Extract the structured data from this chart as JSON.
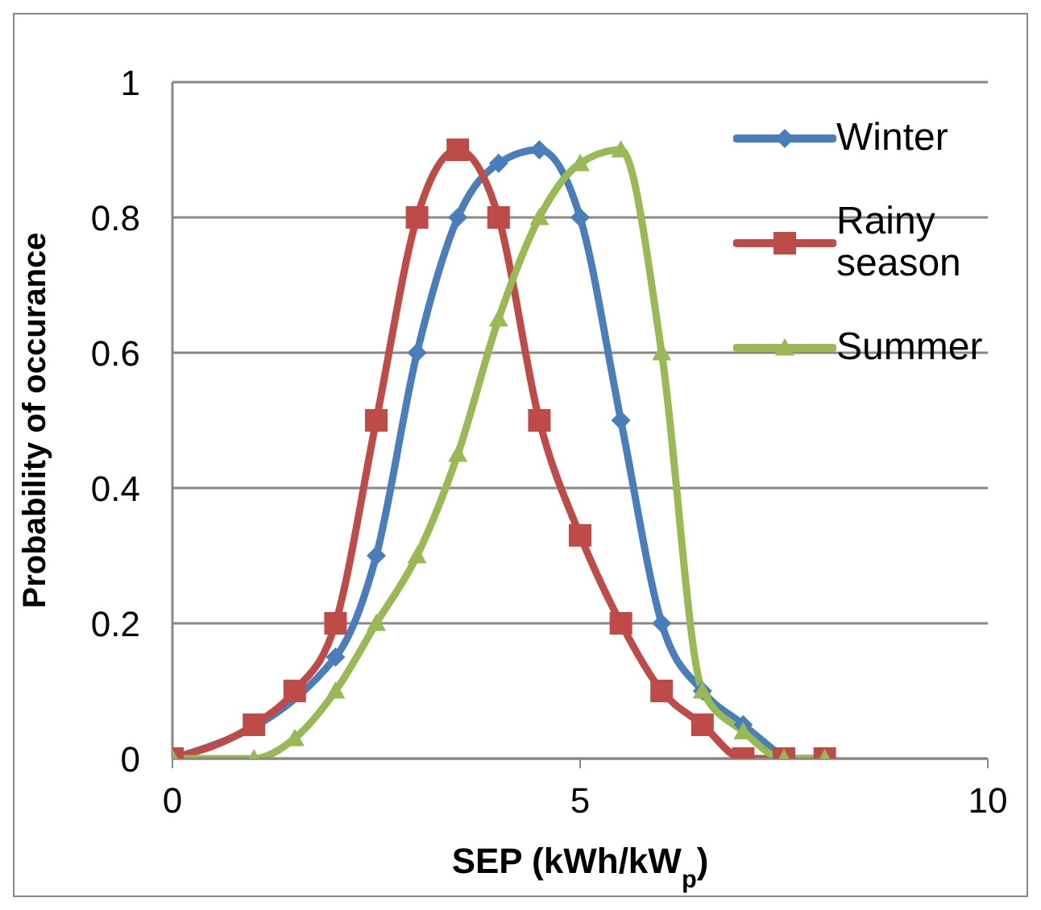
{
  "chart_data": {
    "type": "line",
    "xlabel": "SEP (kWh/kW$_{p}$)",
    "ylabel": "Probability  of  occurance",
    "xlim": [
      0,
      10
    ],
    "xticks": [
      0,
      5,
      10
    ],
    "ylim": [
      0,
      1
    ],
    "yticks": [
      0,
      0.2,
      0.4,
      0.6,
      0.8,
      1
    ],
    "grid": "y",
    "legend": "top right",
    "line_style": "solid",
    "series": [
      {
        "name": "Winter",
        "color": "#4a7ebb",
        "marker": "diamond",
        "x": [
          0,
          1,
          1.5,
          2,
          2.5,
          3,
          3.5,
          4,
          4.5,
          5,
          5.5,
          6,
          6.5,
          7,
          7.5
        ],
        "values": [
          0,
          null,
          null,
          0.15,
          0.3,
          0.6,
          0.8,
          0.88,
          0.9,
          0.8,
          0.5,
          0.2,
          0.1,
          0.05,
          0
        ]
      },
      {
        "name": "Rainy season",
        "color": "#be4b48",
        "marker": "square",
        "x": [
          0,
          1,
          1.5,
          2,
          2.5,
          3,
          3.5,
          4,
          4.5,
          5,
          5.5,
          6,
          6.5,
          7,
          7.5,
          8
        ],
        "values": [
          0,
          0.05,
          0.1,
          0.2,
          0.5,
          0.8,
          0.9,
          0.8,
          0.5,
          0.33,
          0.2,
          0.1,
          0.05,
          0,
          0,
          0
        ]
      },
      {
        "name": "Summer",
        "color": "#98b954",
        "marker": "triangle",
        "x": [
          0,
          1,
          1.5,
          2,
          2.5,
          3,
          3.5,
          4,
          4.5,
          5,
          5.5,
          6,
          6.5,
          7,
          7.5,
          8
        ],
        "values": [
          0,
          0,
          0.03,
          0.1,
          0.2,
          0.3,
          0.45,
          0.65,
          0.8,
          0.88,
          0.9,
          0.6,
          0.1,
          0.04,
          0,
          0
        ]
      }
    ]
  }
}
